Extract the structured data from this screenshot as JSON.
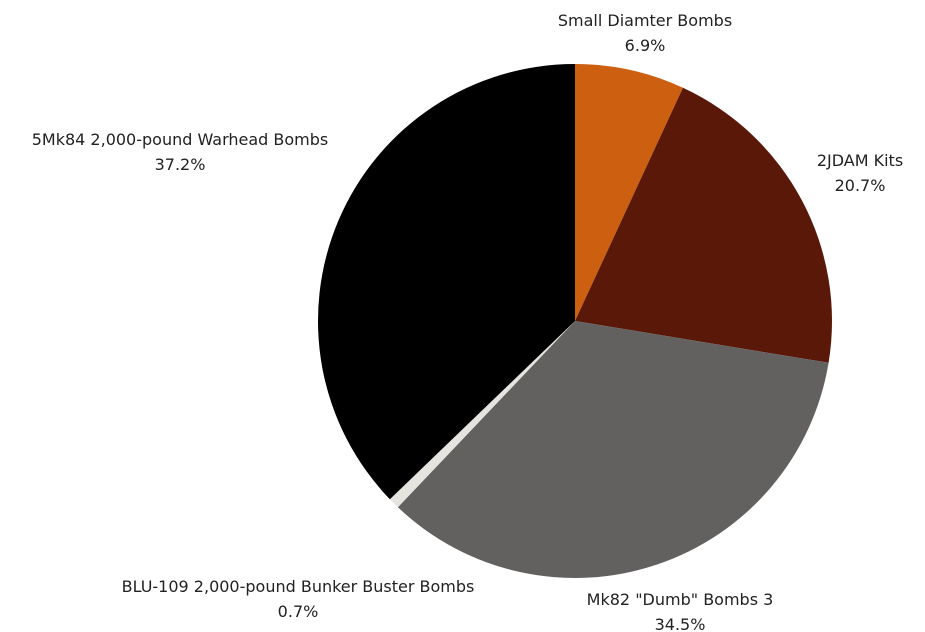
{
  "chart_data": {
    "type": "pie",
    "title": "",
    "legend": "none",
    "slices": [
      {
        "label": "Small Diamter Bombs",
        "value": 6.9,
        "value_label": "6.9%",
        "color": "#cc5f10"
      },
      {
        "label": "2JDAM Kits",
        "value": 20.7,
        "value_label": "20.7%",
        "color": "#5a1808"
      },
      {
        "label": "Mk82 \"Dumb\" Bombs 3",
        "value": 34.5,
        "value_label": "34.5%",
        "color": "#636160"
      },
      {
        "label": "BLU-109 2,000-pound Bunker Buster Bombs",
        "value": 0.7,
        "value_label": "0.7%",
        "color": "#e6e4de"
      },
      {
        "label": "5Mk84 2,000-pound Warhead Bombs",
        "value": 37.2,
        "value_label": "37.2%",
        "color": "#000000"
      }
    ]
  }
}
